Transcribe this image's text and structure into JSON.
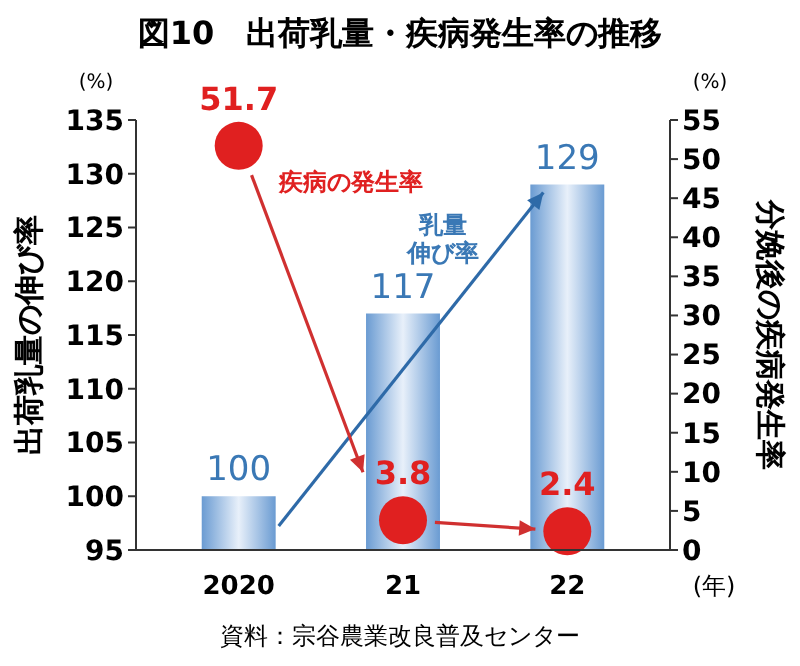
{
  "chart_data": {
    "type": "bar",
    "title": "図10　出荷乳量・疾病発生率の推移",
    "categories": [
      "2020",
      "21",
      "22"
    ],
    "xlabel": "(年)",
    "ylabel": "出荷乳量の伸び率",
    "y2label": "分娩後の疾病発生率",
    "series": [
      {
        "name": "乳量伸び率",
        "color": "#6a9bd2",
        "values": [
          100,
          117,
          129
        ]
      },
      {
        "type": "scatter",
        "name": "疾病の発生率",
        "color": "#e02020",
        "axis": "y2",
        "values": [
          51.7,
          3.8,
          2.4
        ]
      }
    ],
    "ylim": [
      95,
      135
    ],
    "yticks": [
      95,
      100,
      105,
      110,
      115,
      120,
      125,
      130,
      135
    ],
    "y2lim": [
      0,
      55
    ],
    "y2ticks": [
      0,
      5,
      10,
      15,
      20,
      25,
      30,
      35,
      40,
      45,
      50,
      55
    ],
    "data_labels": true,
    "marker": "circle",
    "grid": false,
    "legend": false,
    "annotations": [
      "(%)",
      "(%)",
      "資料：宗谷農業改良普及センター"
    ]
  }
}
